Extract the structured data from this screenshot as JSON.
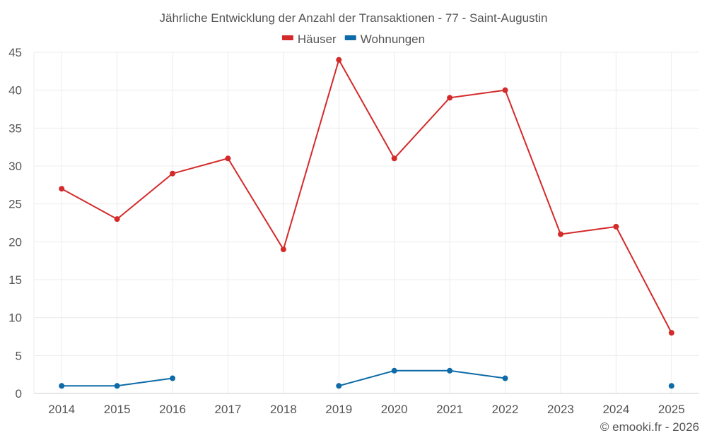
{
  "chart_data": {
    "type": "line",
    "title": "Jährliche Entwicklung der Anzahl der Transaktionen - 77 - Saint-Augustin",
    "categories": [
      "2014",
      "2015",
      "2016",
      "2017",
      "2018",
      "2019",
      "2020",
      "2021",
      "2022",
      "2023",
      "2024",
      "2025"
    ],
    "series": [
      {
        "name": "Häuser",
        "color": "#d42a2a",
        "values": [
          27,
          23,
          29,
          31,
          19,
          44,
          31,
          39,
          40,
          21,
          22,
          8
        ]
      },
      {
        "name": "Wohnungen",
        "color": "#0e6ba8",
        "values": [
          1,
          1,
          2,
          null,
          null,
          1,
          3,
          3,
          2,
          null,
          null,
          1
        ]
      }
    ],
    "ylim": [
      0,
      45
    ],
    "yticks": [
      0,
      5,
      10,
      15,
      20,
      25,
      30,
      35,
      40,
      45
    ],
    "xlabel": "",
    "ylabel": "",
    "grid": true,
    "legend": "top-center"
  },
  "credit": "© emooki.fr - 2026",
  "colors": {
    "grid": "#ececec",
    "axis_text": "#555555",
    "title_text": "#555555"
  }
}
